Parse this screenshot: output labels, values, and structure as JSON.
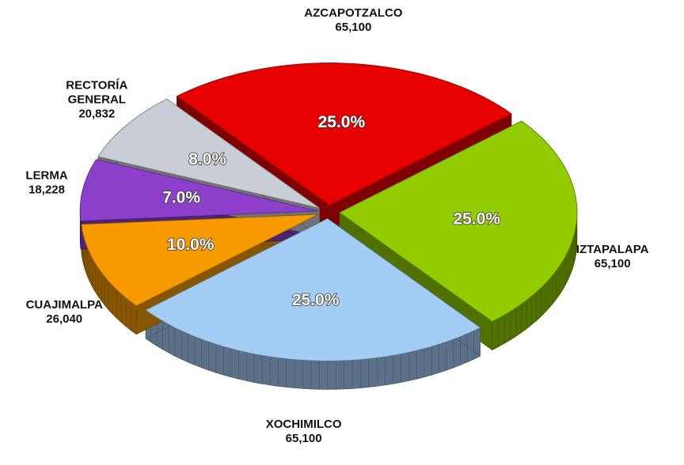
{
  "chart_data": {
    "type": "pie3d",
    "categories": [
      "AZCAPOTZALCO",
      "IZTAPALAPA",
      "XOCHIMILCO",
      "CUAJIMALPA",
      "LERMA",
      "RECTORÍA GENERAL"
    ],
    "values": [
      65100,
      65100,
      65100,
      26040,
      18228,
      20832
    ],
    "value_labels": [
      "65,100",
      "65,100",
      "65,100",
      "26,040",
      "18,228",
      "20,832"
    ],
    "percent_labels": [
      "25.0%",
      "25.0%",
      "25.0%",
      "10.0%",
      "7.0%",
      "8.0%"
    ],
    "colors": [
      "#e60000",
      "#92cc00",
      "#a4cdf5",
      "#f79a00",
      "#8d3fcb",
      "#c9cdd6"
    ]
  }
}
